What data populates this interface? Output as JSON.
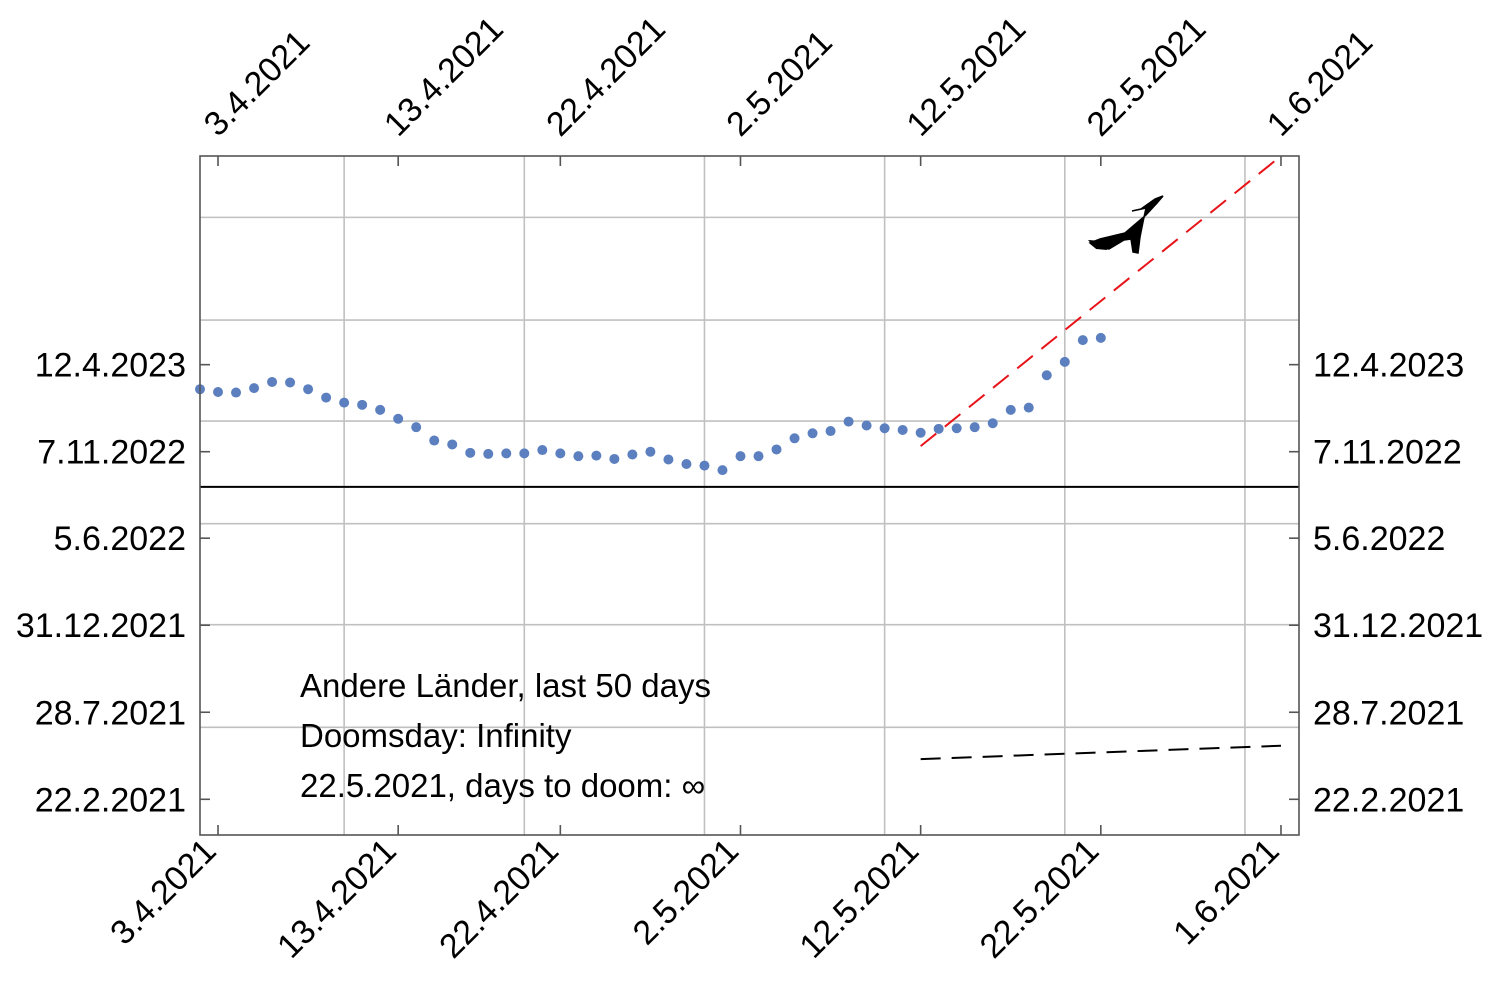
{
  "chart_data": {
    "type": "scatter",
    "x_axis": {
      "kind": "date",
      "range": [
        "2021-04-02",
        "2021-06-02"
      ],
      "ticks": [
        {
          "date": "2021-04-03",
          "label": "3.4.2021"
        },
        {
          "date": "2021-04-13",
          "label": "13.4.2021"
        },
        {
          "date": "2021-04-22",
          "label": "22.4.2021"
        },
        {
          "date": "2021-05-02",
          "label": "2.5.2021"
        },
        {
          "date": "2021-05-12",
          "label": "12.5.2021"
        },
        {
          "date": "2021-05-22",
          "label": "22.5.2021"
        },
        {
          "date": "2021-06-01",
          "label": "1.6.2021"
        }
      ],
      "gridlines": [
        "2021-04-10",
        "2021-04-20",
        "2021-04-30",
        "2021-05-10",
        "2021-05-20",
        "2021-05-30"
      ]
    },
    "y_axis": {
      "kind": "date",
      "range": [
        "2020-12-20",
        "2024-04-20"
      ],
      "ticks": [
        {
          "date": "2021-02-22",
          "label": "22.2.2021"
        },
        {
          "date": "2021-07-28",
          "label": "28.7.2021"
        },
        {
          "date": "2021-12-31",
          "label": "31.12.2021"
        },
        {
          "date": "2022-06-05",
          "label": "5.6.2022"
        },
        {
          "date": "2022-11-07",
          "label": "7.11.2022"
        },
        {
          "date": "2023-04-12",
          "label": "12.4.2023"
        }
      ],
      "gridlines": [
        "2021-07-01",
        "2022-01-01",
        "2022-07-01",
        "2023-01-01",
        "2023-07-01",
        "2024-01-01"
      ]
    },
    "reference_line": {
      "date": "2022-09-05",
      "color": "#000000"
    },
    "series": [
      {
        "color": "#5b7fbf",
        "points": [
          {
            "x": "2021-04-02",
            "y": "2023-02-27"
          },
          {
            "x": "2021-04-03",
            "y": "2023-02-22"
          },
          {
            "x": "2021-04-04",
            "y": "2023-02-21"
          },
          {
            "x": "2021-04-05",
            "y": "2023-03-01"
          },
          {
            "x": "2021-04-06",
            "y": "2023-03-12"
          },
          {
            "x": "2021-04-07",
            "y": "2023-03-11"
          },
          {
            "x": "2021-04-08",
            "y": "2023-02-27"
          },
          {
            "x": "2021-04-09",
            "y": "2023-02-12"
          },
          {
            "x": "2021-04-10",
            "y": "2023-02-03"
          },
          {
            "x": "2021-04-11",
            "y": "2023-01-30"
          },
          {
            "x": "2021-04-12",
            "y": "2023-01-21"
          },
          {
            "x": "2021-04-13",
            "y": "2023-01-05"
          },
          {
            "x": "2021-04-14",
            "y": "2022-12-21"
          },
          {
            "x": "2021-04-15",
            "y": "2022-11-27"
          },
          {
            "x": "2021-04-16",
            "y": "2022-11-20"
          },
          {
            "x": "2021-04-17",
            "y": "2022-11-05"
          },
          {
            "x": "2021-04-18",
            "y": "2022-11-03"
          },
          {
            "x": "2021-04-19",
            "y": "2022-11-04"
          },
          {
            "x": "2021-04-20",
            "y": "2022-11-04"
          },
          {
            "x": "2021-04-21",
            "y": "2022-11-10"
          },
          {
            "x": "2021-04-22",
            "y": "2022-11-04"
          },
          {
            "x": "2021-04-23",
            "y": "2022-10-30"
          },
          {
            "x": "2021-04-24",
            "y": "2022-10-31"
          },
          {
            "x": "2021-04-25",
            "y": "2022-10-25"
          },
          {
            "x": "2021-04-26",
            "y": "2022-11-02"
          },
          {
            "x": "2021-04-27",
            "y": "2022-11-07"
          },
          {
            "x": "2021-04-28",
            "y": "2022-10-24"
          },
          {
            "x": "2021-04-29",
            "y": "2022-10-16"
          },
          {
            "x": "2021-04-30",
            "y": "2022-10-13"
          },
          {
            "x": "2021-05-01",
            "y": "2022-10-05"
          },
          {
            "x": "2021-05-02",
            "y": "2022-10-30"
          },
          {
            "x": "2021-05-03",
            "y": "2022-10-30"
          },
          {
            "x": "2021-05-04",
            "y": "2022-11-11"
          },
          {
            "x": "2021-05-05",
            "y": "2022-12-01"
          },
          {
            "x": "2021-05-06",
            "y": "2022-12-10"
          },
          {
            "x": "2021-05-07",
            "y": "2022-12-14"
          },
          {
            "x": "2021-05-08",
            "y": "2022-12-31"
          },
          {
            "x": "2021-05-09",
            "y": "2022-12-24"
          },
          {
            "x": "2021-05-10",
            "y": "2022-12-19"
          },
          {
            "x": "2021-05-11",
            "y": "2022-12-16"
          },
          {
            "x": "2021-05-12",
            "y": "2022-12-11"
          },
          {
            "x": "2021-05-13",
            "y": "2022-12-18"
          },
          {
            "x": "2021-05-14",
            "y": "2022-12-19"
          },
          {
            "x": "2021-05-15",
            "y": "2022-12-21"
          },
          {
            "x": "2021-05-16",
            "y": "2022-12-28"
          },
          {
            "x": "2021-05-17",
            "y": "2023-01-21"
          },
          {
            "x": "2021-05-18",
            "y": "2023-01-25"
          },
          {
            "x": "2021-05-19",
            "y": "2023-03-24"
          },
          {
            "x": "2021-05-20",
            "y": "2023-04-17"
          },
          {
            "x": "2021-05-21",
            "y": "2023-05-26"
          },
          {
            "x": "2021-05-22",
            "y": "2023-05-30"
          }
        ]
      }
    ],
    "fit_lines": [
      {
        "color": "#e8141a",
        "style": "dashed",
        "from": {
          "x": "2021-05-12",
          "y": "2022-11-17"
        },
        "to": {
          "x": "2021-06-01",
          "y": "2024-04-20"
        }
      },
      {
        "color": "#000000",
        "style": "dashed",
        "from": {
          "x": "2021-05-12",
          "y": "2021-05-05"
        },
        "to": {
          "x": "2021-06-01",
          "y": "2021-05-29"
        }
      }
    ],
    "annotation_lines": [
      "Andere Länder, last 50 days",
      "Doomsday: Infinity",
      "22.5.2021, days to doom: ∞"
    ],
    "grid": true,
    "legend": "none",
    "icons": [
      "airplane-icon"
    ]
  }
}
